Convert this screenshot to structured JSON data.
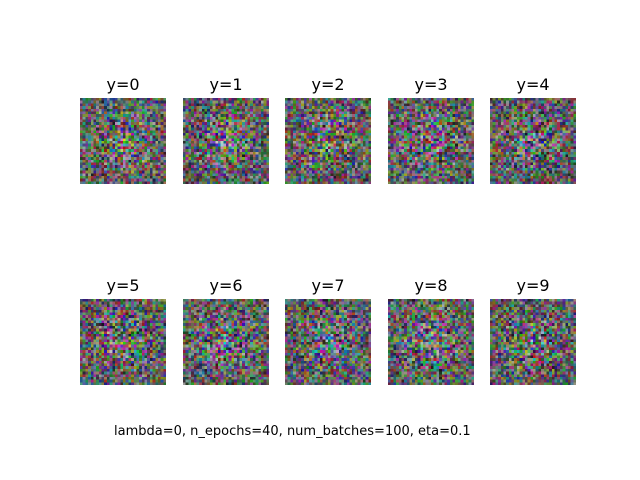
{
  "figure": {
    "panels": [
      {
        "title": "y=0"
      },
      {
        "title": "y=1"
      },
      {
        "title": "y=2"
      },
      {
        "title": "y=3"
      },
      {
        "title": "y=4"
      },
      {
        "title": "y=5"
      },
      {
        "title": "y=6"
      },
      {
        "title": "y=7"
      },
      {
        "title": "y=8"
      },
      {
        "title": "y=9"
      }
    ],
    "caption": "lambda=0, n_epochs=40, num_batches=100, eta=0.1"
  }
}
